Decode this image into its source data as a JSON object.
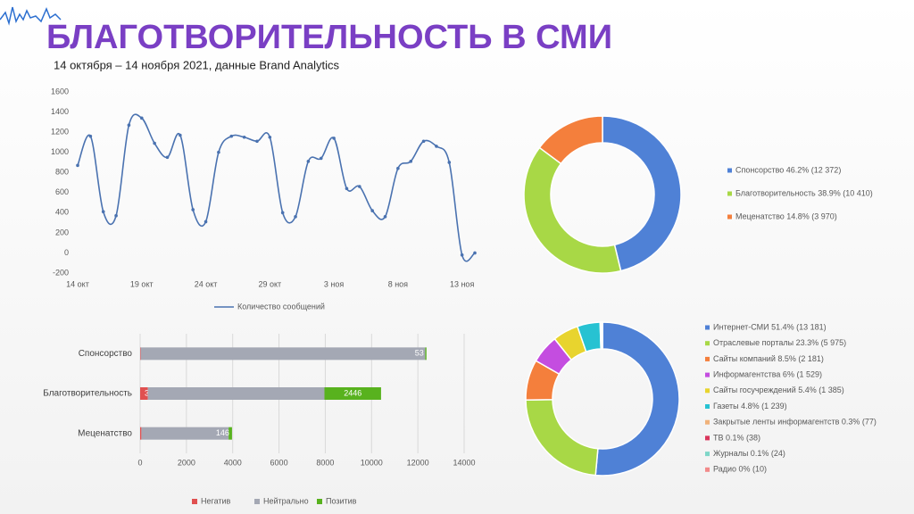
{
  "page": {
    "title": "БЛАГОТВОРИТЕЛЬНОСТЬ В СМИ",
    "subtitle": "14 октября – 14 ноября 2021, данные Brand Analytics"
  },
  "chart_data": [
    {
      "type": "line",
      "categories": [
        "14 окт",
        null,
        null,
        null,
        null,
        "19 окт",
        null,
        null,
        null,
        null,
        "24 окт",
        null,
        null,
        null,
        null,
        "29 окт",
        null,
        null,
        null,
        null,
        "3 ноя",
        null,
        null,
        null,
        null,
        "8 ноя",
        null,
        null,
        null,
        null,
        "13 ноя",
        null
      ],
      "series": [
        {
          "name": "Количество сообщений",
          "color": "#4a72b0",
          "values": [
            870,
            1160,
            410,
            370,
            1270,
            1340,
            1090,
            950,
            1170,
            430,
            310,
            1000,
            1160,
            1150,
            1110,
            1150,
            400,
            360,
            910,
            940,
            1140,
            640,
            660,
            420,
            360,
            840,
            910,
            1110,
            1060,
            900,
            -20,
            0
          ]
        }
      ],
      "ylim": [
        -200,
        1600
      ],
      "yticks": [
        -200,
        0,
        200,
        400,
        600,
        800,
        1000,
        1200,
        1400,
        1600
      ],
      "legend": "bottom"
    },
    {
      "type": "donut",
      "series": [
        {
          "name": "Спонсорство 46.2% (12 372)",
          "color": "#4f81d6",
          "values": [
            46.2
          ]
        },
        {
          "name": "Благотворительность 38.9% (10 410)",
          "color": "#a8d846",
          "values": [
            38.9
          ]
        },
        {
          "name": "Меценатство 14.8% (3 970)",
          "color": "#f47f3c",
          "values": [
            14.8
          ]
        }
      ],
      "legend": "right"
    },
    {
      "type": "donut",
      "series": [
        {
          "name": "Интернет-СМИ 51.4% (13 181)",
          "color": "#4f81d6",
          "values": [
            51.4
          ]
        },
        {
          "name": "Отраслевые порталы 23.3% (5 975)",
          "color": "#a8d846",
          "values": [
            23.3
          ]
        },
        {
          "name": "Сайты компаний 8.5% (2 181)",
          "color": "#f47f3c",
          "values": [
            8.5
          ]
        },
        {
          "name": "Информагентства 6% (1 529)",
          "color": "#c44de0",
          "values": [
            6
          ]
        },
        {
          "name": "Сайты госучреждений 5.4% (1 385)",
          "color": "#e8d42e",
          "values": [
            5.4
          ]
        },
        {
          "name": "Газеты 4.8% (1 239)",
          "color": "#27c2d2",
          "values": [
            4.8
          ]
        },
        {
          "name": "Закрытые ленты информагентств 0.3% (77)",
          "color": "#f0b27a",
          "values": [
            0.3
          ]
        },
        {
          "name": "ТВ 0.1% (38)",
          "color": "#d9365c",
          "values": [
            0.1
          ]
        },
        {
          "name": "Журналы 0.1% (24)",
          "color": "#7fd6c8",
          "values": [
            0.1
          ]
        },
        {
          "name": "Радио 0% (10)",
          "color": "#f28a8a",
          "values": [
            0
          ]
        }
      ],
      "legend": "right"
    },
    {
      "type": "stacked-bar-horizontal",
      "categories": [
        "Спонсорство",
        "Благотворительность",
        "Меценатство"
      ],
      "series": [
        {
          "name": "Негатив",
          "color": "#e05050",
          "values": [
            23,
            334,
            54
          ],
          "labels": true
        },
        {
          "name": "Нейтрально",
          "color": "#a4a8b4",
          "values": [
            12296,
            7630,
            3770
          ],
          "labels": false
        },
        {
          "name": "Позитив",
          "color": "#58b21e",
          "values": [
            53,
            2446,
            146
          ],
          "labels": true
        }
      ],
      "xlim": [
        0,
        14000
      ],
      "xticks": [
        0,
        2000,
        4000,
        6000,
        8000,
        10000,
        12000,
        14000
      ],
      "grid": true,
      "legend": "bottom"
    }
  ]
}
